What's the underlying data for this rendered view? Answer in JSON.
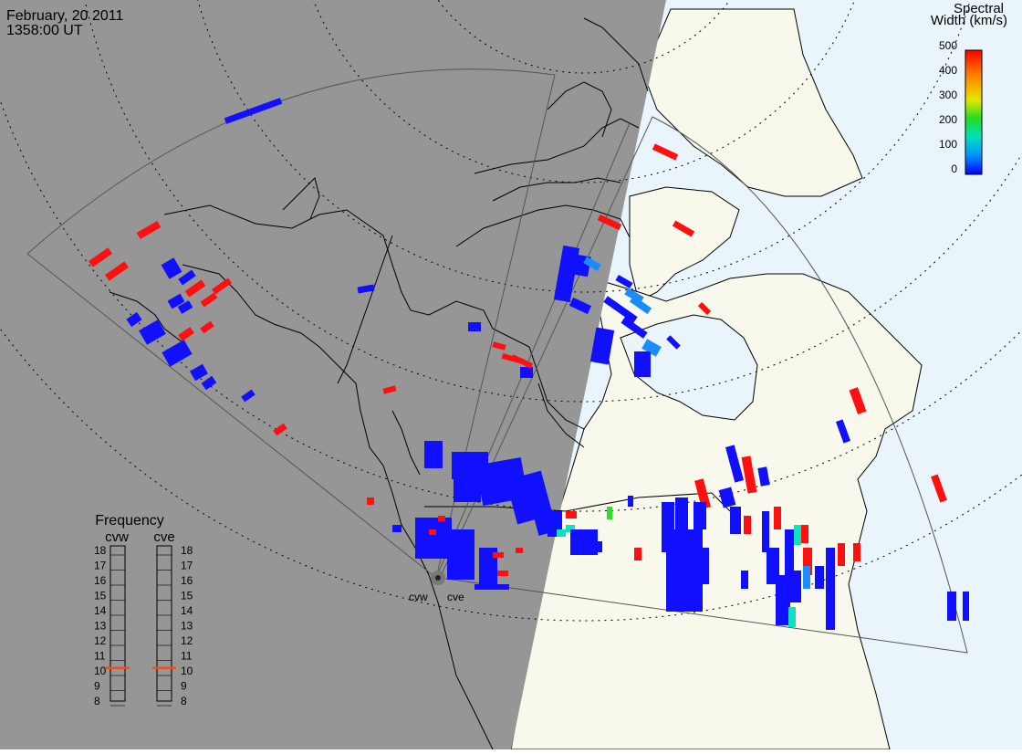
{
  "header": {
    "date": "February, 20 2011",
    "time": "1358:00 UT"
  },
  "colorbar": {
    "title_line1": "Spectral",
    "title_line2": "Width (km/s)",
    "ticks": [
      "500",
      "400",
      "300",
      "200",
      "100",
      "0"
    ],
    "colors": [
      "#ff0000",
      "#ff7f00",
      "#e6e600",
      "#22dd22",
      "#00e0c0",
      "#00a0ff",
      "#0000ff"
    ]
  },
  "radars": {
    "west": "cvw",
    "east": "cve"
  },
  "frequency_panel": {
    "title": "Frequency",
    "left_label": "cvw",
    "right_label": "cve",
    "ticks": [
      "18",
      "17",
      "16",
      "15",
      "14",
      "13",
      "12",
      "11",
      "10",
      "9",
      "8"
    ],
    "cvw_value": 10.5,
    "cve_value": 10.5,
    "marker_color": "#e65020"
  },
  "map_colors": {
    "night": "#969696",
    "day_land": "#f8f8ec",
    "day_ocean": "#eaf4fb",
    "coast": "#000000",
    "grid": "#000000"
  }
}
